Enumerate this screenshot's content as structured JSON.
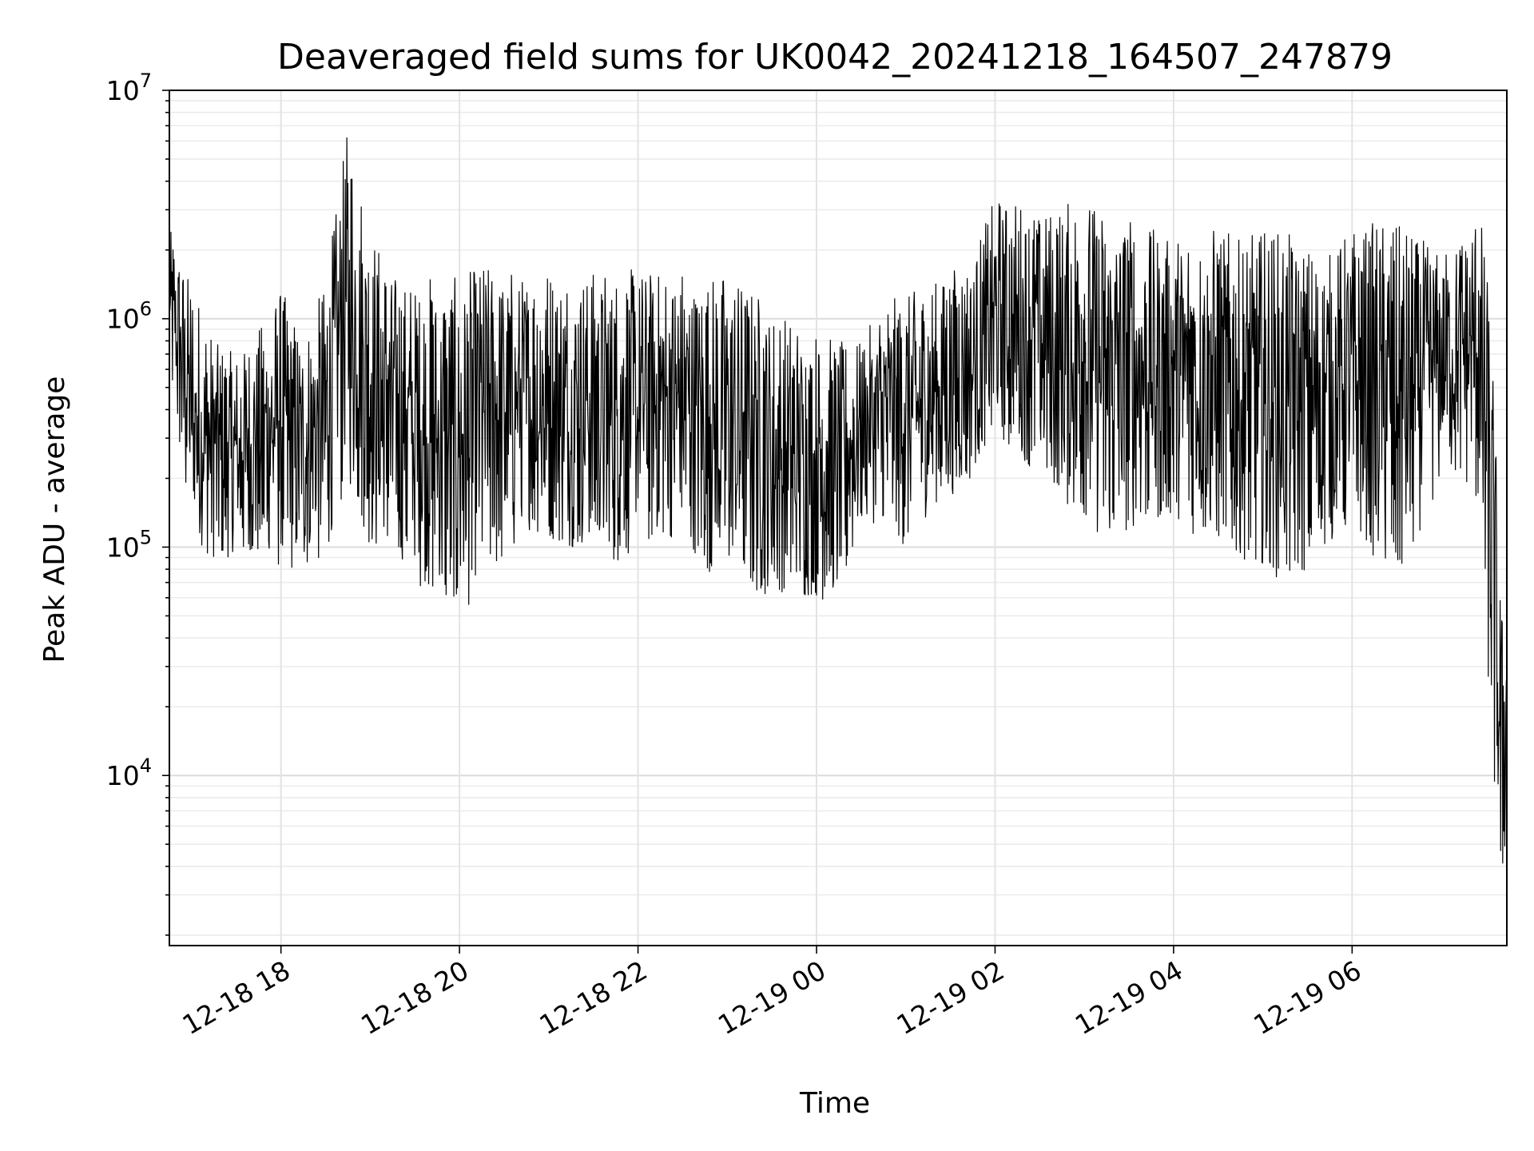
{
  "chart_data": {
    "type": "line",
    "title": "Deaveraged field sums for UK0042_20241218_164507_247879",
    "xlabel": "Time",
    "ylabel": "Peak ADU - average",
    "yscale": "log",
    "ylim": [
      1800,
      10000000
    ],
    "xlim": [
      "2024-12-18 16:45",
      "2024-12-19 07:44"
    ],
    "grid": true,
    "line_color": "#000000",
    "x_ticks": [
      "12-18 18",
      "12-18 20",
      "12-18 22",
      "12-19 00",
      "12-19 02",
      "12-19 04",
      "12-19 06"
    ],
    "y_ticks": [
      {
        "base": "10",
        "exp": "4",
        "value": 10000
      },
      {
        "base": "10",
        "exp": "5",
        "value": 100000
      },
      {
        "base": "10",
        "exp": "6",
        "value": 1000000
      },
      {
        "base": "10",
        "exp": "7",
        "value": 10000000
      }
    ],
    "series": [
      {
        "x": [
          "2024-12-18 16:45",
          "2024-12-18 17:00",
          "2024-12-18 17:15",
          "2024-12-18 17:30",
          "2024-12-18 17:45",
          "2024-12-18 18:00",
          "2024-12-18 18:15",
          "2024-12-18 18:30",
          "2024-12-18 18:45",
          "2024-12-18 19:00",
          "2024-12-18 19:15",
          "2024-12-18 19:30",
          "2024-12-18 19:45",
          "2024-12-18 20:00",
          "2024-12-18 20:15",
          "2024-12-18 20:30",
          "2024-12-18 20:45",
          "2024-12-18 21:00",
          "2024-12-18 21:15",
          "2024-12-18 21:30",
          "2024-12-18 21:45",
          "2024-12-18 22:00",
          "2024-12-18 22:15",
          "2024-12-18 22:30",
          "2024-12-18 22:45",
          "2024-12-18 23:00",
          "2024-12-18 23:15",
          "2024-12-18 23:30",
          "2024-12-18 23:45",
          "2024-12-19 00:00",
          "2024-12-19 00:15",
          "2024-12-19 00:30",
          "2024-12-19 00:45",
          "2024-12-19 01:00",
          "2024-12-19 01:15",
          "2024-12-19 01:30",
          "2024-12-19 01:45",
          "2024-12-19 02:00",
          "2024-12-19 02:15",
          "2024-12-19 02:30",
          "2024-12-19 02:45",
          "2024-12-19 03:00",
          "2024-12-19 03:15",
          "2024-12-19 03:30",
          "2024-12-19 03:45",
          "2024-12-19 04:00",
          "2024-12-19 04:15",
          "2024-12-19 04:30",
          "2024-12-19 04:45",
          "2024-12-19 05:00",
          "2024-12-19 05:15",
          "2024-12-19 05:30",
          "2024-12-19 05:45",
          "2024-12-19 06:00",
          "2024-12-19 06:15",
          "2024-12-19 06:30",
          "2024-12-19 06:45",
          "2024-12-19 07:00",
          "2024-12-19 07:15",
          "2024-12-19 07:25",
          "2024-12-19 07:30",
          "2024-12-19 07:35",
          "2024-12-19 07:40",
          "2024-12-19 07:44"
        ],
        "low": [
          600000,
          100000,
          90000,
          90000,
          90000,
          80000,
          80000,
          90000,
          200000,
          100000,
          90000,
          70000,
          60000,
          45000,
          75000,
          80000,
          120000,
          110000,
          100000,
          95000,
          85000,
          100000,
          110000,
          110000,
          80000,
          70000,
          65000,
          60000,
          60000,
          60000,
          55000,
          130000,
          120000,
          100000,
          140000,
          160000,
          200000,
          300000,
          250000,
          200000,
          150000,
          140000,
          100000,
          120000,
          130000,
          140000,
          110000,
          100000,
          90000,
          80000,
          70000,
          80000,
          100000,
          120000,
          90000,
          70000,
          110000,
          200000,
          200000,
          150000,
          40000,
          10000,
          2800,
          6000
        ],
        "high": [
          2500000,
          1500000,
          800000,
          700000,
          900000,
          1400000,
          800000,
          1500000,
          7000000,
          2500000,
          1600000,
          1500000,
          1600000,
          1500000,
          1800000,
          1700000,
          1600000,
          1700000,
          1600000,
          1700000,
          1600000,
          1700000,
          1600000,
          1700000,
          1500000,
          1700000,
          1500000,
          1100000,
          1000000,
          900000,
          800000,
          800000,
          1200000,
          1300000,
          1400000,
          1700000,
          1900000,
          3400000,
          3300000,
          3000000,
          3200000,
          3500000,
          3000000,
          3000000,
          2500000,
          2200000,
          2800000,
          2600000,
          2200000,
          2500000,
          2400000,
          2100000,
          2000000,
          2500000,
          2700000,
          2600000,
          2300000,
          2000000,
          2500000,
          3200000,
          2000000,
          600000,
          60000,
          40000
        ]
      }
    ]
  }
}
